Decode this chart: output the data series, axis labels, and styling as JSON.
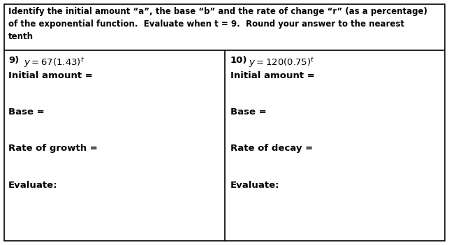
{
  "title_line1": "Identify the initial amount “a”, the base “b” and the rate of change “r” (as a percentage)",
  "title_line2": "of the exponential function.  Evaluate when t = 9.  Round your answer to the nearest",
  "title_line3": "tenth",
  "left_labels": [
    "Initial amount =",
    "Base =",
    "Rate of growth =",
    "Evaluate:"
  ],
  "right_labels": [
    "Initial amount =",
    "Base =",
    "Rate of decay =",
    "Evaluate:"
  ],
  "bg_color": "#ffffff",
  "border_color": "#000000",
  "text_color": "#000000",
  "title_fontsize": 8.5,
  "problem_fontsize": 9.5,
  "label_fontsize": 9.5,
  "fig_width": 6.43,
  "fig_height": 3.51,
  "dpi": 100
}
